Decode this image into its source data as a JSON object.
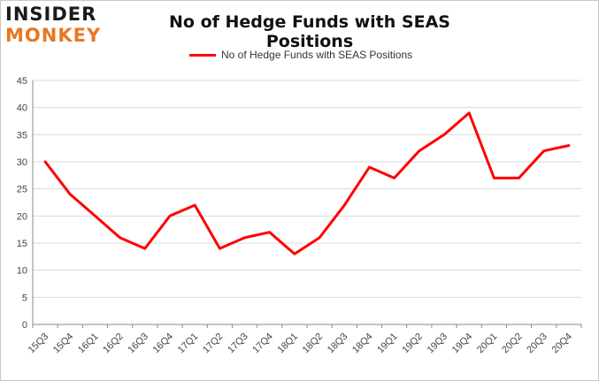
{
  "logo": {
    "line1": "INSIDER",
    "line2": "MONKEY"
  },
  "chart_data": {
    "type": "line",
    "title": "No of Hedge Funds with SEAS Positions",
    "xlabel": "",
    "ylabel": "",
    "categories": [
      "15Q3",
      "15Q4",
      "16Q1",
      "16Q2",
      "16Q3",
      "16Q4",
      "17Q1",
      "17Q2",
      "17Q3",
      "17Q4",
      "18Q1",
      "18Q2",
      "18Q3",
      "18Q4",
      "19Q1",
      "19Q2",
      "19Q3",
      "19Q4",
      "20Q1",
      "20Q2",
      "20Q3",
      "20Q4"
    ],
    "series": [
      {
        "name": "No of Hedge Funds with SEAS Positions",
        "color": "#ff0000",
        "values": [
          30,
          24,
          20,
          16,
          14,
          20,
          22,
          14,
          16,
          17,
          13,
          16,
          22,
          29,
          27,
          32,
          35,
          39,
          27,
          27,
          32,
          33
        ]
      }
    ],
    "ylim": [
      0,
      45
    ],
    "yticks": [
      0,
      5,
      10,
      15,
      20,
      25,
      30,
      35,
      40,
      45
    ],
    "grid": true,
    "legend_position": "top-center"
  }
}
